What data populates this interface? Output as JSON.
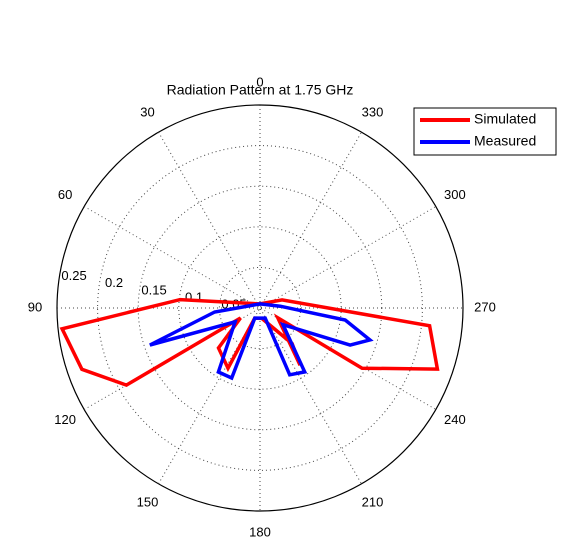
{
  "chart_data": {
    "type": "polar",
    "title": "Radiation Pattern at 1.75 GHz",
    "rlim": [
      0,
      0.25
    ],
    "rticks": [
      0.05,
      0.1,
      0.15,
      0.2,
      0.25
    ],
    "thetaticks": [
      0,
      30,
      60,
      90,
      120,
      150,
      180,
      210,
      240,
      270,
      300,
      330
    ],
    "theta_direction": "counterclockwise",
    "theta_zero": "top",
    "grid": true,
    "legend": "northeast",
    "series": [
      {
        "name": "Simulated",
        "color": "#ff0000",
        "theta": [
          0,
          84,
          96,
          109,
          120,
          117,
          134,
          152,
          153,
          190,
          222,
          215,
          241,
          239.5,
          251,
          264,
          290
        ],
        "values": [
          0.005,
          0.099,
          0.245,
          0.232,
          0.19,
          0.027,
          0.071,
          0.084,
          0.014,
          0.013,
          0.059,
          0.086,
          0.025,
          0.146,
          0.231,
          0.21,
          0.029
        ]
      },
      {
        "name": "Measured",
        "color": "#0000ff",
        "theta": [
          0,
          95,
          108.6,
          119,
          147,
          158,
          153,
          207,
          204,
          215,
          234,
          247.6,
          253.8,
          262,
          275
        ],
        "values": [
          0.005,
          0.056,
          0.143,
          0.035,
          0.094,
          0.093,
          0.014,
          0.014,
          0.09,
          0.096,
          0.035,
          0.12,
          0.141,
          0.106,
          0.025
        ]
      }
    ]
  }
}
